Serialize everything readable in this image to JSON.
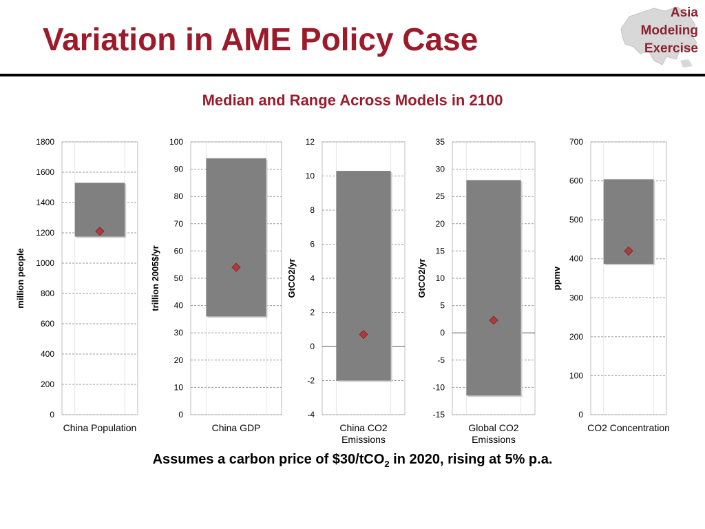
{
  "title": "Variation in AME Policy Case",
  "logo": {
    "line1": "Asia",
    "line2": "Modeling",
    "line3": "Exercise",
    "icon": "asia-map-icon"
  },
  "subtitle": "Median and Range Across Models in 2100",
  "footnote": {
    "pre": "Assumes a carbon price of $30/tCO",
    "sub": "2",
    "post": " in 2020, rising at 5% p.a."
  },
  "colors": {
    "title": "#9b1b2a",
    "range_bar": "#808080",
    "median_marker": "#b03a3a"
  },
  "chart_data": [
    {
      "type": "bar",
      "chart": "range-with-median",
      "category": "China Population",
      "ylabel": "million people",
      "ylim": [
        0,
        1800
      ],
      "yticks": [
        "0",
        "200",
        "400",
        "600",
        "800",
        "1000",
        "1200",
        "1400",
        "1600",
        "1800"
      ],
      "range": [
        1175,
        1530
      ],
      "median": 1210,
      "grid": true
    },
    {
      "type": "bar",
      "chart": "range-with-median",
      "category": "China GDP",
      "ylabel": "trillion 2005$/yr",
      "ylim": [
        0,
        100
      ],
      "yticks": [
        "0",
        "10",
        "20",
        "30",
        "40",
        "50",
        "60",
        "70",
        "80",
        "90",
        "100"
      ],
      "range": [
        36,
        94
      ],
      "median": 54,
      "grid": true
    },
    {
      "type": "bar",
      "chart": "range-with-median",
      "category": "China CO2\nEmissions",
      "ylabel": "GtCO2/yr",
      "ylim": [
        -4,
        12
      ],
      "yticks": [
        "-4",
        "-2",
        "0",
        "2",
        "4",
        "6",
        "8",
        "10",
        "12"
      ],
      "range": [
        -2,
        10.3
      ],
      "median": 0.7,
      "grid": true
    },
    {
      "type": "bar",
      "chart": "range-with-median",
      "category": "Global CO2\nEmissions",
      "ylabel": "GtCO2/yr",
      "ylim": [
        -15,
        35
      ],
      "yticks": [
        "-15",
        "-10",
        "-5",
        "0",
        "5",
        "10",
        "15",
        "20",
        "25",
        "30",
        "35"
      ],
      "range": [
        -11.5,
        28
      ],
      "median": 2.3,
      "grid": true
    },
    {
      "type": "bar",
      "chart": "range-with-median",
      "category": "CO2 Concentration",
      "ylabel": "ppmv",
      "ylim": [
        0,
        700
      ],
      "yticks": [
        "0",
        "100",
        "200",
        "300",
        "400",
        "500",
        "600",
        "700"
      ],
      "range": [
        387,
        604
      ],
      "median": 420,
      "grid": true
    }
  ]
}
